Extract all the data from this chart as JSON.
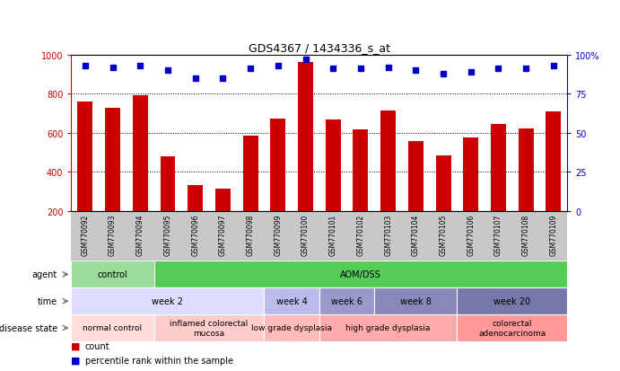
{
  "title": "GDS4367 / 1434336_s_at",
  "samples": [
    "GSM770092",
    "GSM770093",
    "GSM770094",
    "GSM770095",
    "GSM770096",
    "GSM770097",
    "GSM770098",
    "GSM770099",
    "GSM770100",
    "GSM770101",
    "GSM770102",
    "GSM770103",
    "GSM770104",
    "GSM770105",
    "GSM770106",
    "GSM770107",
    "GSM770108",
    "GSM770109"
  ],
  "counts": [
    760,
    725,
    790,
    480,
    330,
    315,
    585,
    670,
    960,
    668,
    615,
    715,
    555,
    485,
    573,
    645,
    620,
    710
  ],
  "percentiles": [
    93,
    92,
    93,
    90,
    85,
    85,
    91,
    93,
    97,
    91,
    91,
    92,
    90,
    88,
    89,
    91,
    91,
    93
  ],
  "ymin": 200,
  "ymax": 1000,
  "yticks": [
    200,
    400,
    600,
    800,
    1000
  ],
  "y2ticks": [
    0,
    25,
    50,
    75,
    100
  ],
  "y2labels": [
    "0",
    "25",
    "50",
    "75",
    "100%"
  ],
  "bar_color": "#cc0000",
  "dot_color": "#0000cc",
  "bg_color": "#ffffff",
  "xtick_bg": "#c8c8c8",
  "agent_segments": [
    {
      "text": "control",
      "start": 0,
      "end": 3,
      "color": "#99dd99"
    },
    {
      "text": "AOM/DSS",
      "start": 3,
      "end": 18,
      "color": "#55cc55"
    }
  ],
  "time_segments": [
    {
      "text": "week 2",
      "start": 0,
      "end": 7,
      "color": "#ddddff"
    },
    {
      "text": "week 4",
      "start": 7,
      "end": 9,
      "color": "#bbbbee"
    },
    {
      "text": "week 6",
      "start": 9,
      "end": 11,
      "color": "#9999cc"
    },
    {
      "text": "week 8",
      "start": 11,
      "end": 14,
      "color": "#8888bb"
    },
    {
      "text": "week 20",
      "start": 14,
      "end": 18,
      "color": "#7777aa"
    }
  ],
  "disease_segments": [
    {
      "text": "normal control",
      "start": 0,
      "end": 3,
      "color": "#ffdddd"
    },
    {
      "text": "inflamed colorectal\nmucosa",
      "start": 3,
      "end": 7,
      "color": "#ffcccc"
    },
    {
      "text": "low grade dysplasia",
      "start": 7,
      "end": 9,
      "color": "#ffbbbb"
    },
    {
      "text": "high grade dysplasia",
      "start": 9,
      "end": 14,
      "color": "#ffaaaa"
    },
    {
      "text": "colorectal\nadenocarcinoma",
      "start": 14,
      "end": 18,
      "color": "#ff9999"
    }
  ],
  "legend_items": [
    {
      "color": "#cc0000",
      "label": "count"
    },
    {
      "color": "#0000cc",
      "label": "percentile rank within the sample"
    }
  ],
  "grid_yticks": [
    400,
    600,
    800
  ]
}
